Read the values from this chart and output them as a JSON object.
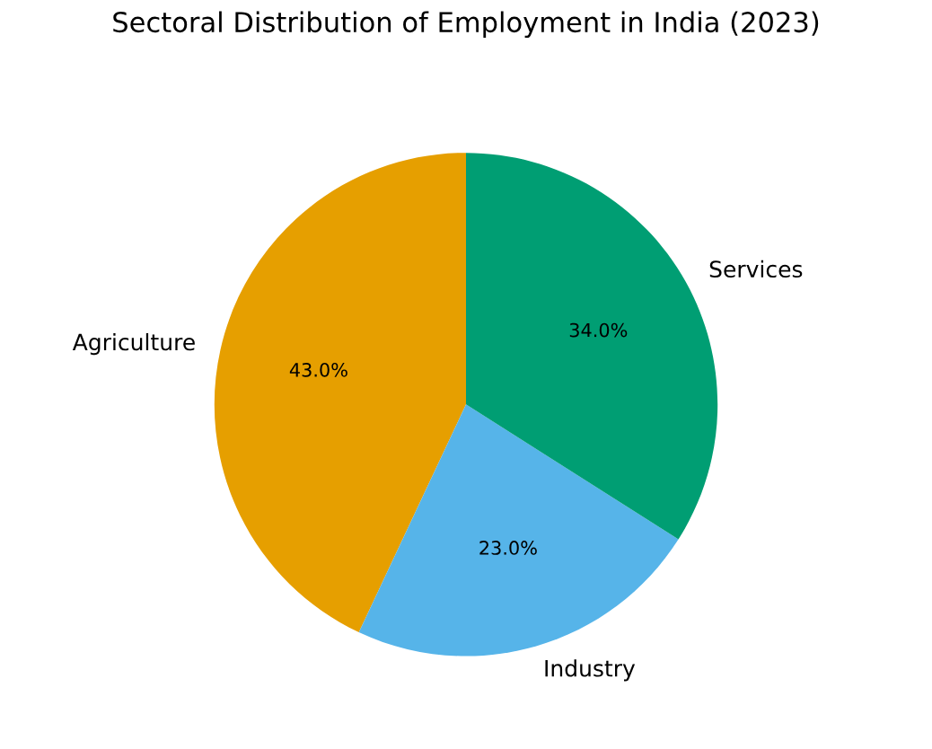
{
  "chart_data": {
    "type": "pie",
    "title": "Sectoral Distribution of Employment in India (2023)",
    "categories": [
      "Agriculture",
      "Industry",
      "Services"
    ],
    "values": [
      43.0,
      23.0,
      34.0
    ],
    "colors": [
      "#e69f00",
      "#56b4e9",
      "#009e73"
    ],
    "value_labels": [
      "43.0%",
      "23.0%",
      "34.0%"
    ]
  }
}
